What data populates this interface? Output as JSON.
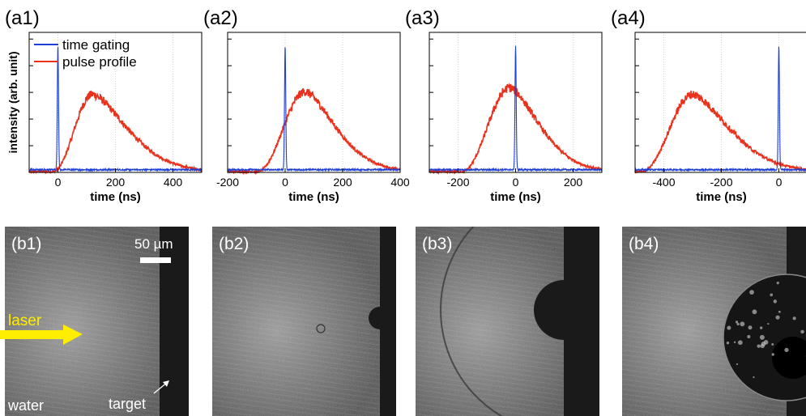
{
  "chart_data": [
    {
      "type": "line",
      "panel_label": "(a1)",
      "xlabel": "time (ns)",
      "ylabel": "intensity (arb. unit)",
      "xlim": [
        -100,
        500
      ],
      "xticks": [
        0,
        200,
        400
      ],
      "ylim": [
        0,
        1.05
      ],
      "yticks": [
        0.2,
        0.4,
        0.6,
        0.8,
        1.0
      ],
      "grid": "vertical dotted at x ticks",
      "legend": {
        "placement": "top-left",
        "entries": [
          "time gating",
          "pulse profile"
        ]
      },
      "series": [
        {
          "name": "time gating",
          "color": "#1f3fd6",
          "gate_center": 0,
          "gate_fwhm": 5,
          "gate_peak": 0.93,
          "baseline": 0.02,
          "x": [
            -100,
            -10,
            -5,
            -2,
            0,
            2,
            5,
            10,
            500
          ],
          "y": [
            0.02,
            0.02,
            0.05,
            0.6,
            0.93,
            0.6,
            0.05,
            0.02,
            0.02
          ]
        },
        {
          "name": "pulse profile",
          "color": "#e8321e",
          "rise_start": -20,
          "peak_x": 120,
          "peak": 0.58,
          "tail_end": 500,
          "x": [
            -100,
            -20,
            0,
            40,
            80,
            120,
            160,
            200,
            260,
            320,
            400,
            500
          ],
          "y": [
            0.0,
            0.0,
            0.03,
            0.2,
            0.45,
            0.58,
            0.5,
            0.36,
            0.2,
            0.1,
            0.04,
            0.01
          ]
        }
      ]
    },
    {
      "type": "line",
      "panel_label": "(a2)",
      "xlabel": "time (ns)",
      "xlim": [
        -200,
        400
      ],
      "xticks": [
        -200,
        0,
        200,
        400
      ],
      "ylim": [
        0,
        1.05
      ],
      "grid": "vertical dotted at x ticks",
      "series": [
        {
          "name": "time gating",
          "color": "#1f3fd6",
          "gate_center": 0,
          "gate_fwhm": 5,
          "gate_peak": 0.93,
          "baseline": 0.02
        },
        {
          "name": "pulse profile",
          "color": "#e8321e",
          "rise_start": -100,
          "peak_x": 70,
          "peak": 0.6,
          "tail_end": 400
        }
      ]
    },
    {
      "type": "line",
      "panel_label": "(a3)",
      "xlabel": "time (ns)",
      "xlim": [
        -300,
        300
      ],
      "xticks": [
        -200,
        0,
        200
      ],
      "ylim": [
        0,
        1.05
      ],
      "grid": "vertical dotted at x ticks",
      "series": [
        {
          "name": "time gating",
          "color": "#1f3fd6",
          "gate_center": 0,
          "gate_fwhm": 5,
          "gate_peak": 0.93,
          "baseline": 0.02
        },
        {
          "name": "pulse profile",
          "color": "#e8321e",
          "rise_start": -190,
          "peak_x": -20,
          "peak": 0.63,
          "tail_end": 300
        }
      ]
    },
    {
      "type": "line",
      "panel_label": "(a4)",
      "xlabel": "time (ns)",
      "xlim": [
        -500,
        100
      ],
      "xticks": [
        -400,
        -200,
        0
      ],
      "ylim": [
        0,
        1.05
      ],
      "grid": "vertical dotted at x ticks",
      "series": [
        {
          "name": "time gating",
          "color": "#1f3fd6",
          "gate_center": 0,
          "gate_fwhm": 5,
          "gate_peak": 0.93,
          "baseline": 0.02
        },
        {
          "name": "pulse profile",
          "color": "#e8321e",
          "rise_start": -480,
          "peak_x": -300,
          "peak": 0.58,
          "tail_end": 100
        }
      ]
    }
  ],
  "images": {
    "panels": [
      {
        "label": "(b1)",
        "scale_bar": "50 µm",
        "laser_label": "laser",
        "medium_label": "water",
        "target_label": "target"
      },
      {
        "label": "(b2)"
      },
      {
        "label": "(b3)"
      },
      {
        "label": "(b4)"
      }
    ],
    "colors": {
      "laser_arrow": "#ffee00",
      "background_gray": "#7a7a7a",
      "target_dark": "#1a1a1a"
    }
  }
}
